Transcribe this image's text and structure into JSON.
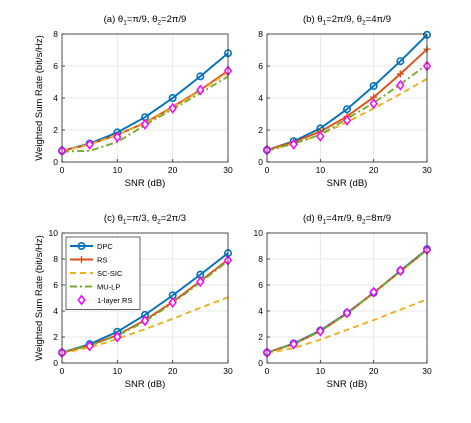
{
  "figure": {
    "legend": [
      {
        "name": "DPC",
        "color": "#0072BD",
        "marker": "circle",
        "dash": "solid"
      },
      {
        "name": "RS",
        "color": "#D95319",
        "marker": "plus",
        "dash": "solid"
      },
      {
        "name": "SC-SIC",
        "color": "#EDB120",
        "marker": "none",
        "dash": "dashed"
      },
      {
        "name": "MU-LP",
        "color": "#77AC30",
        "marker": "none",
        "dash": "dashdot"
      },
      {
        "name": "1-layer RS",
        "color": "#FF00FF",
        "marker": "diamond",
        "dash": "none"
      }
    ],
    "legend_placement": "upper-left of panel (c)"
  },
  "chart_data": [
    {
      "type": "line",
      "title_parts": [
        "(a) θ",
        "1",
        "=π/9, θ",
        "2",
        "=2π/9"
      ],
      "xlabel": "SNR (dB)",
      "ylabel": "Weighted Sum Rate (bit/s/Hz)",
      "xlim": [
        0,
        30
      ],
      "ylim": [
        0,
        8
      ],
      "xticks": [
        0,
        10,
        20,
        30
      ],
      "yticks": [
        0,
        2,
        4,
        6,
        8
      ],
      "grid": true,
      "x": [
        0,
        5,
        10,
        15,
        20,
        25,
        30
      ],
      "series": [
        {
          "name": "DPC",
          "values": [
            0.7,
            1.15,
            1.85,
            2.8,
            4.0,
            5.35,
            6.8
          ]
        },
        {
          "name": "RS",
          "values": [
            0.7,
            1.1,
            1.7,
            2.45,
            3.45,
            4.5,
            5.7
          ]
        },
        {
          "name": "SC-SIC",
          "values": [
            0.7,
            1.1,
            1.7,
            2.4,
            3.4,
            4.45,
            5.6
          ]
        },
        {
          "name": "MU-LP",
          "values": [
            0.65,
            0.7,
            1.25,
            2.3,
            3.3,
            4.3,
            5.35
          ]
        },
        {
          "name": "1-layer RS",
          "values": [
            0.7,
            1.1,
            1.55,
            2.35,
            3.35,
            4.5,
            5.7
          ]
        }
      ]
    },
    {
      "type": "line",
      "title_parts": [
        "(b) θ",
        "1",
        "=2π/9, θ",
        "2",
        "=4π/9"
      ],
      "xlabel": "SNR (dB)",
      "ylabel": "",
      "xlim": [
        0,
        30
      ],
      "ylim": [
        0,
        8
      ],
      "xticks": [
        0,
        10,
        20,
        30
      ],
      "yticks": [
        0,
        2,
        4,
        6,
        8
      ],
      "grid": true,
      "x": [
        0,
        5,
        10,
        15,
        20,
        25,
        30
      ],
      "series": [
        {
          "name": "DPC",
          "values": [
            0.75,
            1.3,
            2.1,
            3.3,
            4.75,
            6.3,
            7.95
          ]
        },
        {
          "name": "RS",
          "values": [
            0.75,
            1.25,
            1.9,
            2.85,
            4.05,
            5.5,
            7.05
          ]
        },
        {
          "name": "SC-SIC",
          "values": [
            0.7,
            1.15,
            1.7,
            2.5,
            3.35,
            4.25,
            5.2
          ]
        },
        {
          "name": "MU-LP",
          "values": [
            0.7,
            1.15,
            1.7,
            2.7,
            3.7,
            4.85,
            6.1
          ]
        },
        {
          "name": "1-layer RS",
          "values": [
            0.75,
            1.1,
            1.6,
            2.6,
            3.65,
            4.8,
            6.0
          ]
        }
      ]
    },
    {
      "type": "line",
      "title_parts": [
        "(c) θ",
        "1",
        "=π/3, θ",
        "2",
        "=2π/3"
      ],
      "xlabel": "SNR (dB)",
      "ylabel": "Weighted Sum Rate (bit/s/Hz)",
      "xlim": [
        0,
        30
      ],
      "ylim": [
        0,
        10
      ],
      "xticks": [
        0,
        10,
        20,
        30
      ],
      "yticks": [
        0,
        2,
        4,
        6,
        8,
        10
      ],
      "grid": true,
      "x": [
        0,
        5,
        10,
        15,
        20,
        25,
        30
      ],
      "series": [
        {
          "name": "DPC",
          "values": [
            0.8,
            1.45,
            2.4,
            3.7,
            5.2,
            6.8,
            8.45
          ]
        },
        {
          "name": "RS",
          "values": [
            0.8,
            1.35,
            2.15,
            3.3,
            4.7,
            6.3,
            7.95
          ]
        },
        {
          "name": "SC-SIC",
          "values": [
            0.75,
            1.2,
            1.85,
            2.6,
            3.4,
            4.25,
            5.05
          ]
        },
        {
          "name": "MU-LP",
          "values": [
            0.8,
            1.35,
            2.1,
            3.2,
            4.6,
            6.2,
            7.85
          ]
        },
        {
          "name": "1-layer RS",
          "values": [
            0.8,
            1.3,
            2.0,
            3.25,
            4.65,
            6.25,
            7.9
          ]
        }
      ]
    },
    {
      "type": "line",
      "title_parts": [
        "(d) θ",
        "1",
        "=4π/9, θ",
        "2",
        "=8π/9"
      ],
      "xlabel": "SNR (dB)",
      "ylabel": "",
      "xlim": [
        0,
        30
      ],
      "ylim": [
        0,
        10
      ],
      "xticks": [
        0,
        10,
        20,
        30
      ],
      "yticks": [
        0,
        2,
        4,
        6,
        8,
        10
      ],
      "grid": true,
      "x": [
        0,
        5,
        10,
        15,
        20,
        25,
        30
      ],
      "series": [
        {
          "name": "DPC",
          "values": [
            0.8,
            1.5,
            2.5,
            3.85,
            5.4,
            7.1,
            8.75
          ]
        },
        {
          "name": "RS",
          "values": [
            0.8,
            1.45,
            2.45,
            3.8,
            5.4,
            7.05,
            8.7
          ]
        },
        {
          "name": "SC-SIC",
          "values": [
            0.75,
            1.15,
            1.8,
            2.55,
            3.3,
            4.1,
            4.9
          ]
        },
        {
          "name": "MU-LP",
          "values": [
            0.8,
            1.45,
            2.45,
            3.8,
            5.4,
            7.05,
            8.7
          ]
        },
        {
          "name": "1-layer RS",
          "values": [
            0.8,
            1.45,
            2.45,
            3.85,
            5.45,
            7.1,
            8.7
          ]
        }
      ]
    }
  ]
}
